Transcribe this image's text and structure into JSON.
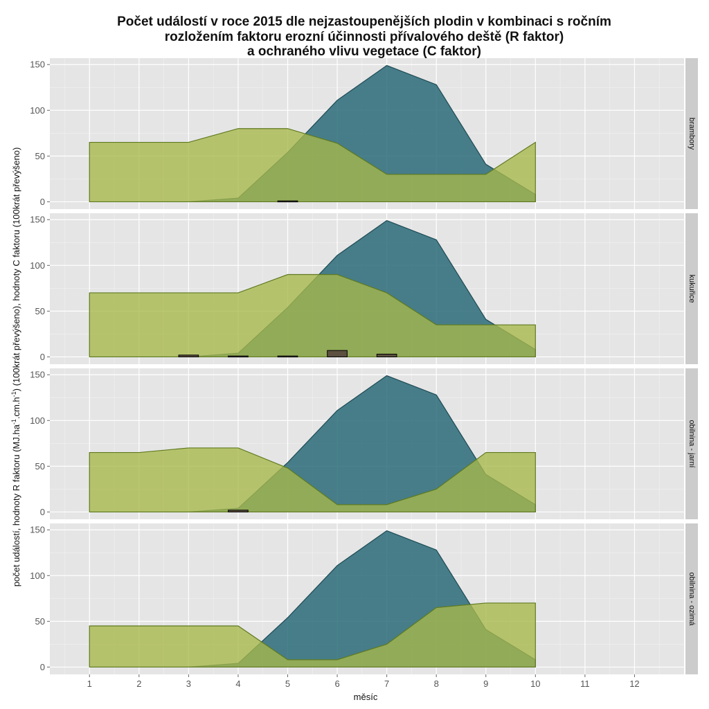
{
  "chart_data": {
    "type": "area",
    "title_lines": [
      "Počet událostí v roce 2015 dle nejzastoupenějších plodin v kombinaci s ročním",
      "rozložením faktoru erozní účinnosti přívalového deště (R faktor)",
      "a ochraného vlivu vegetace (C faktor)"
    ],
    "xlabel": "měsíc",
    "ylabel_parts": [
      "počet událostí, hodnoty R faktoru (MJ.ha",
      "-1",
      ".cm.h",
      "-1",
      ") (100krát převýšeno), hodnoty C faktoru (100krát převýšeno)"
    ],
    "x_ticks": [
      "1",
      "2",
      "3",
      "4",
      "5",
      "6",
      "7",
      "8",
      "9",
      "10",
      "11",
      "12"
    ],
    "y_ticks": [
      "0",
      "50",
      "100",
      "150"
    ],
    "xlim": [
      0.2,
      13
    ],
    "ylim": [
      -8,
      157
    ],
    "r_factor": {
      "x": [
        1,
        2,
        3,
        4,
        5,
        6,
        7,
        8,
        9,
        10
      ],
      "y": [
        0,
        0,
        0,
        4,
        54,
        111,
        149,
        128,
        41,
        8
      ]
    },
    "colors": {
      "r_fill": "#2a6b78",
      "r_line": "#1d4a55",
      "c_fill": "#a8b84a",
      "c_line": "#5f7a20",
      "bar_fill": "#5c5040",
      "bar_line": "#000000",
      "panel_bg": "#e5e5e5",
      "grid_major": "#ffffff",
      "strip_bg": "#cccccc"
    },
    "panels": [
      {
        "label": "brambory",
        "c_factor": {
          "x": [
            1,
            2,
            3,
            4,
            5,
            6,
            7,
            8,
            9,
            10
          ],
          "y": [
            65,
            65,
            65,
            80,
            80,
            64,
            30,
            30,
            30,
            65
          ]
        },
        "events": [
          {
            "x": 5,
            "count": 1
          }
        ]
      },
      {
        "label": "kukuřice",
        "c_factor": {
          "x": [
            1,
            2,
            3,
            4,
            5,
            6,
            7,
            8,
            9,
            10
          ],
          "y": [
            70,
            70,
            70,
            70,
            90,
            90,
            70,
            35,
            35,
            35
          ]
        },
        "events": [
          {
            "x": 3,
            "count": 2
          },
          {
            "x": 4,
            "count": 1
          },
          {
            "x": 5,
            "count": 1
          },
          {
            "x": 6,
            "count": 7
          },
          {
            "x": 7,
            "count": 3
          }
        ]
      },
      {
        "label": "obilnina - jarní",
        "c_factor": {
          "x": [
            1,
            2,
            3,
            4,
            5,
            6,
            7,
            8,
            9,
            10
          ],
          "y": [
            65,
            65,
            70,
            70,
            48,
            8,
            8,
            25,
            65,
            65
          ]
        },
        "events": [
          {
            "x": 4,
            "count": 2
          }
        ]
      },
      {
        "label": "obilnina - ozimá",
        "c_factor": {
          "x": [
            1,
            2,
            3,
            4,
            5,
            6,
            7,
            8,
            9,
            10
          ],
          "y": [
            45,
            45,
            45,
            45,
            8,
            8,
            25,
            65,
            70,
            70
          ]
        },
        "events": []
      }
    ]
  }
}
